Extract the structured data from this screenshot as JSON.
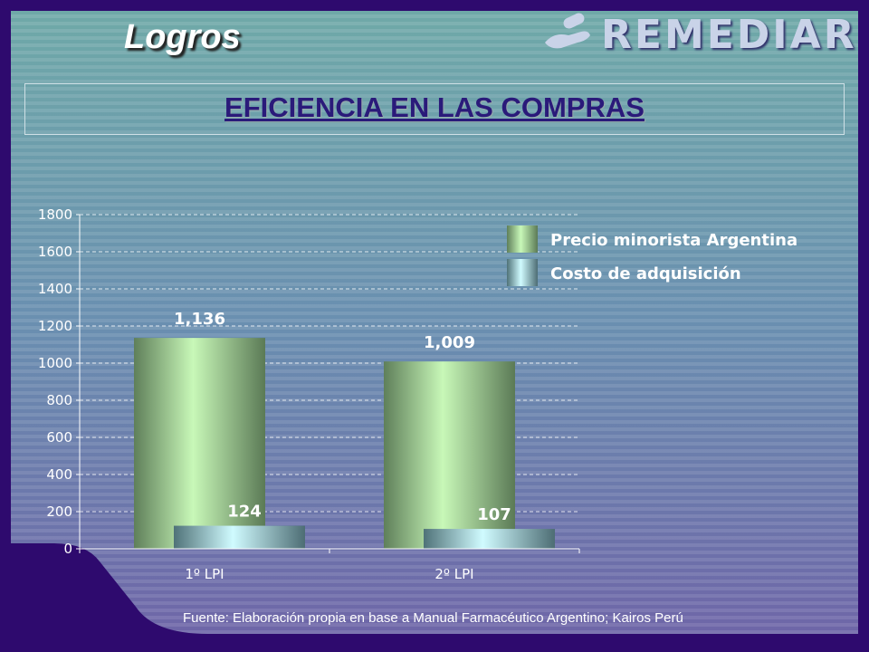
{
  "header": {
    "title": "Logros",
    "logo_text": "REMEDIAR"
  },
  "banner": {
    "text": "EFICIENCIA EN LAS COMPRAS"
  },
  "footer": {
    "source": "Fuente: Elaboración propia en base a  Manual Farmacéutico Argentino; Kairos Perú"
  },
  "colors": {
    "series1": "#b8f0a8",
    "series2": "#bff4ff",
    "axis_text": "#ffffff",
    "label_text": "#ffffff"
  },
  "chart_data": {
    "type": "bar",
    "categories": [
      "1º LPI",
      "2º LPI"
    ],
    "series": [
      {
        "name": "Precio minorista Argentina",
        "values": [
          1136,
          1009
        ],
        "labels": [
          "1,136",
          "1,009"
        ]
      },
      {
        "name": "Costo de adquisición",
        "values": [
          124,
          107
        ],
        "labels": [
          "124",
          "107"
        ]
      }
    ],
    "yticks": [
      0,
      200,
      400,
      600,
      800,
      1000,
      1200,
      1400,
      1600,
      1800
    ],
    "ylim": [
      0,
      1800
    ],
    "grid": true,
    "legend": "top-right"
  }
}
